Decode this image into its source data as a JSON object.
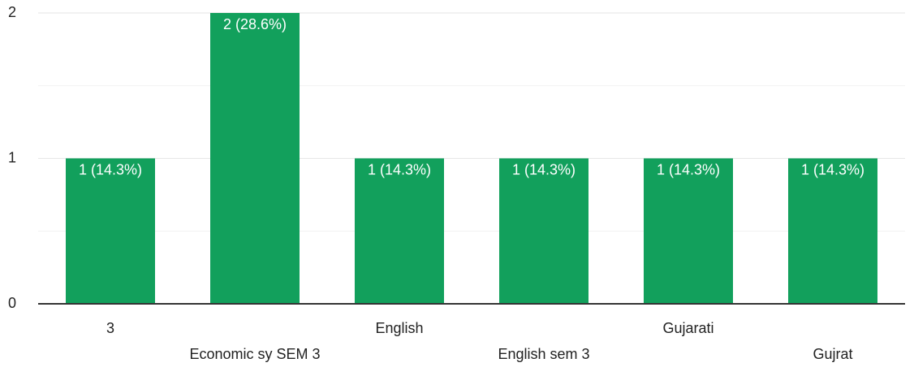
{
  "chart_data": {
    "type": "bar",
    "categories": [
      "3",
      "Economic sy SEM 3",
      "English",
      "English sem 3",
      "Gujarati",
      "Gujrat"
    ],
    "values": [
      1,
      2,
      1,
      1,
      1,
      1
    ],
    "value_labels": [
      "1 (14.3%)",
      "2 (28.6%)",
      "1 (14.3%)",
      "1 (14.3%)",
      "1 (14.3%)",
      "1 (14.3%)"
    ],
    "color": "#12a05c",
    "ylim": [
      0,
      2
    ],
    "yticks": [
      0,
      1,
      2
    ],
    "grid": true
  }
}
